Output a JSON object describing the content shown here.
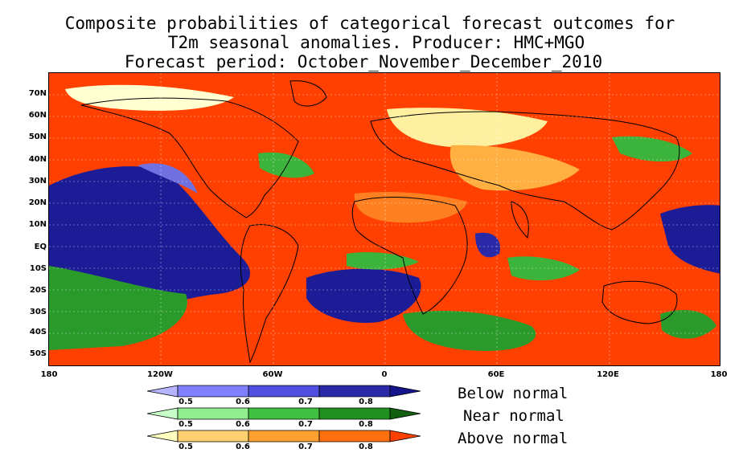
{
  "titles": {
    "line1": "Composite probabilities of categorical forecast outcomes for",
    "line2": "T2m seasonal anomalies. Producer: HMC+MGO",
    "line3": "Forecast period:  October_November_December_2010"
  },
  "map": {
    "lat_labels": [
      "70N",
      "60N",
      "50N",
      "40N",
      "30N",
      "20N",
      "10N",
      "EQ",
      "10S",
      "20S",
      "30S",
      "40S",
      "50S"
    ],
    "lon_labels": [
      "180",
      "120W",
      "60W",
      "0",
      "60E",
      "120E",
      "180"
    ],
    "background_color": "#ff4000"
  },
  "legend": {
    "rows": [
      {
        "name": "Below normal",
        "ticks": [
          "0.5",
          "0.6",
          "0.7",
          "0.8"
        ],
        "colors": [
          "#b4b4ff",
          "#8080ff",
          "#5050e0",
          "#2a2aa8",
          "#14148c"
        ]
      },
      {
        "name": "Near normal",
        "ticks": [
          "0.5",
          "0.6",
          "0.7",
          "0.8"
        ],
        "colors": [
          "#c8ffc8",
          "#90ee90",
          "#40c040",
          "#209020",
          "#106010"
        ]
      },
      {
        "name": "Above normal",
        "ticks": [
          "0.5",
          "0.6",
          "0.7",
          "0.8"
        ],
        "colors": [
          "#ffffc0",
          "#ffd070",
          "#ffa030",
          "#ff7010",
          "#ff4000"
        ]
      }
    ]
  }
}
